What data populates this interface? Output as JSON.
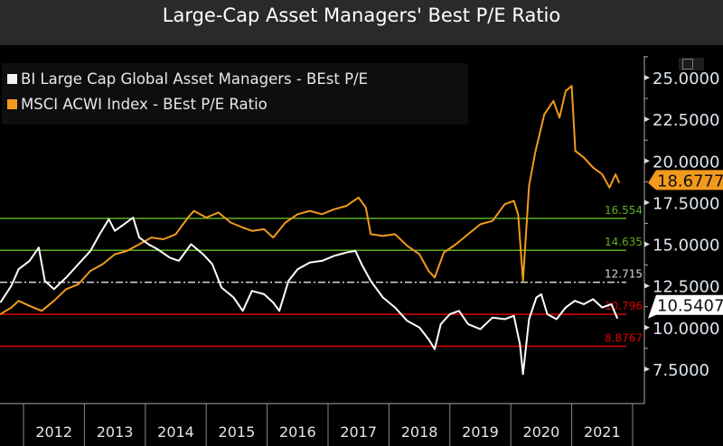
{
  "title": "Large-Cap Asset Managers' Best P/E Ratio",
  "chart_data": {
    "type": "line",
    "title": "Large-Cap Asset Managers' Best P/E Ratio",
    "legend_position": "top-left",
    "ylim": [
      6.5,
      26.3
    ],
    "yticks": [
      "25.0000",
      "22.5000",
      "20.0000",
      "17.5000",
      "15.0000",
      "12.5000",
      "10.0000",
      "7.5000"
    ],
    "ytick_values": [
      25,
      22.5,
      20,
      17.5,
      15,
      12.5,
      10,
      7.5
    ],
    "xticks": [
      "2012",
      "2013",
      "2014",
      "2015",
      "2016",
      "2017",
      "2018",
      "2019",
      "2020",
      "2021"
    ],
    "grid": false,
    "series": [
      {
        "name": "BI Large Cap Global Asset Managers - BEst P/E",
        "color": "#ffffff",
        "last_value": "10.5407",
        "points": [
          [
            2011.62,
            11.5
          ],
          [
            2011.8,
            12.5
          ],
          [
            2011.92,
            13.5
          ],
          [
            2012.1,
            14.0
          ],
          [
            2012.25,
            14.8
          ],
          [
            2012.35,
            12.8
          ],
          [
            2012.5,
            12.3
          ],
          [
            2012.7,
            13.0
          ],
          [
            2012.9,
            13.8
          ],
          [
            2013.1,
            14.6
          ],
          [
            2013.25,
            15.6
          ],
          [
            2013.4,
            16.5
          ],
          [
            2013.5,
            15.8
          ],
          [
            2013.65,
            16.2
          ],
          [
            2013.8,
            16.6
          ],
          [
            2013.9,
            15.4
          ],
          [
            2014.05,
            15.0
          ],
          [
            2014.2,
            14.7
          ],
          [
            2014.4,
            14.2
          ],
          [
            2014.55,
            14.0
          ],
          [
            2014.75,
            15.0
          ],
          [
            2014.95,
            14.4
          ],
          [
            2015.1,
            13.8
          ],
          [
            2015.25,
            12.4
          ],
          [
            2015.45,
            11.8
          ],
          [
            2015.6,
            11.0
          ],
          [
            2015.75,
            12.2
          ],
          [
            2015.95,
            12.0
          ],
          [
            2016.1,
            11.5
          ],
          [
            2016.2,
            11.0
          ],
          [
            2016.35,
            12.8
          ],
          [
            2016.5,
            13.5
          ],
          [
            2016.7,
            13.9
          ],
          [
            2016.9,
            14.0
          ],
          [
            2017.1,
            14.3
          ],
          [
            2017.3,
            14.5
          ],
          [
            2017.45,
            14.6
          ],
          [
            2017.55,
            13.8
          ],
          [
            2017.7,
            12.8
          ],
          [
            2017.9,
            11.8
          ],
          [
            2018.1,
            11.2
          ],
          [
            2018.3,
            10.4
          ],
          [
            2018.5,
            10.0
          ],
          [
            2018.65,
            9.3
          ],
          [
            2018.75,
            8.7
          ],
          [
            2018.85,
            10.2
          ],
          [
            2019.0,
            10.8
          ],
          [
            2019.15,
            11.0
          ],
          [
            2019.3,
            10.2
          ],
          [
            2019.5,
            9.9
          ],
          [
            2019.7,
            10.6
          ],
          [
            2019.9,
            10.5
          ],
          [
            2020.05,
            10.7
          ],
          [
            2020.15,
            9.0
          ],
          [
            2020.2,
            7.2
          ],
          [
            2020.3,
            10.5
          ],
          [
            2020.42,
            11.8
          ],
          [
            2020.5,
            12.0
          ],
          [
            2020.6,
            10.8
          ],
          [
            2020.75,
            10.5
          ],
          [
            2020.9,
            11.2
          ],
          [
            2021.05,
            11.6
          ],
          [
            2021.2,
            11.4
          ],
          [
            2021.35,
            11.7
          ],
          [
            2021.5,
            11.2
          ],
          [
            2021.65,
            11.4
          ],
          [
            2021.75,
            10.54
          ]
        ]
      },
      {
        "name": "MSCI ACWI Index - BEst P/E Ratio",
        "color": "#f29a1d",
        "last_value": "18.6777",
        "points": [
          [
            2011.62,
            10.8
          ],
          [
            2011.8,
            11.2
          ],
          [
            2011.92,
            11.6
          ],
          [
            2012.1,
            11.3
          ],
          [
            2012.3,
            11.0
          ],
          [
            2012.5,
            11.6
          ],
          [
            2012.7,
            12.3
          ],
          [
            2012.9,
            12.6
          ],
          [
            2013.1,
            13.4
          ],
          [
            2013.3,
            13.8
          ],
          [
            2013.5,
            14.4
          ],
          [
            2013.7,
            14.6
          ],
          [
            2013.9,
            15.0
          ],
          [
            2014.1,
            15.4
          ],
          [
            2014.3,
            15.3
          ],
          [
            2014.5,
            15.6
          ],
          [
            2014.7,
            16.6
          ],
          [
            2014.8,
            17.0
          ],
          [
            2015.0,
            16.6
          ],
          [
            2015.2,
            16.9
          ],
          [
            2015.4,
            16.3
          ],
          [
            2015.6,
            16.0
          ],
          [
            2015.75,
            15.8
          ],
          [
            2015.95,
            15.9
          ],
          [
            2016.1,
            15.4
          ],
          [
            2016.3,
            16.3
          ],
          [
            2016.5,
            16.8
          ],
          [
            2016.7,
            17.0
          ],
          [
            2016.9,
            16.8
          ],
          [
            2017.1,
            17.1
          ],
          [
            2017.3,
            17.3
          ],
          [
            2017.5,
            17.8
          ],
          [
            2017.62,
            17.2
          ],
          [
            2017.7,
            15.6
          ],
          [
            2017.9,
            15.5
          ],
          [
            2018.1,
            15.6
          ],
          [
            2018.3,
            14.9
          ],
          [
            2018.5,
            14.4
          ],
          [
            2018.65,
            13.4
          ],
          [
            2018.75,
            13.0
          ],
          [
            2018.9,
            14.5
          ],
          [
            2019.1,
            15.0
          ],
          [
            2019.3,
            15.6
          ],
          [
            2019.5,
            16.2
          ],
          [
            2019.7,
            16.4
          ],
          [
            2019.9,
            17.4
          ],
          [
            2020.05,
            17.6
          ],
          [
            2020.12,
            16.8
          ],
          [
            2020.2,
            12.8
          ],
          [
            2020.3,
            18.5
          ],
          [
            2020.4,
            20.5
          ],
          [
            2020.55,
            22.8
          ],
          [
            2020.7,
            23.6
          ],
          [
            2020.8,
            22.6
          ],
          [
            2020.9,
            24.2
          ],
          [
            2021.0,
            24.5
          ],
          [
            2021.06,
            20.6
          ],
          [
            2021.2,
            20.2
          ],
          [
            2021.35,
            19.6
          ],
          [
            2021.5,
            19.2
          ],
          [
            2021.62,
            18.4
          ],
          [
            2021.72,
            19.2
          ],
          [
            2021.78,
            18.68
          ]
        ]
      }
    ],
    "reference_lines": [
      {
        "value": 16.554,
        "label": "16.554",
        "color": "#5fae1e",
        "style": "solid"
      },
      {
        "value": 14.635,
        "label": "14.635",
        "color": "#5fae1e",
        "style": "solid"
      },
      {
        "value": 12.715,
        "label": "12.715",
        "color": "#d8d8d8",
        "style": "dash-dot"
      },
      {
        "value": 10.796,
        "label": "10.796",
        "color": "#e00000",
        "style": "solid"
      },
      {
        "value": 8.8767,
        "label": "8.8767",
        "color": "#e00000",
        "style": "solid"
      }
    ]
  }
}
